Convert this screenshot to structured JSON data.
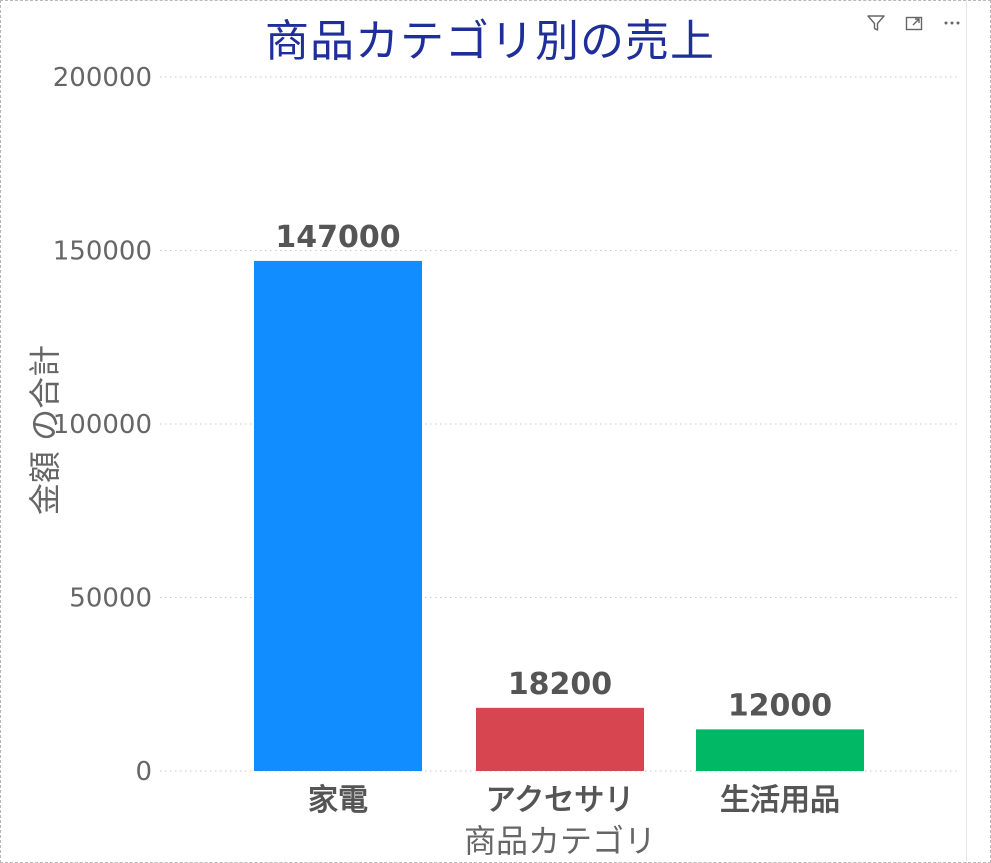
{
  "toolbar": {
    "icons": [
      "filter-icon",
      "focus-mode-icon",
      "more-options-icon"
    ]
  },
  "colors": {
    "title": "#1f2f99",
    "axis_text": "#666666",
    "grid": "#c8c8c8",
    "data_label": "#555555"
  },
  "chart_data": {
    "type": "bar",
    "title": "商品カテゴリ別の売上",
    "xlabel": "商品カテゴリ",
    "ylabel": "金額 の合計",
    "categories": [
      "家電",
      "アクセサリ",
      "生活用品"
    ],
    "values": [
      147000,
      18200,
      12000
    ],
    "colors": [
      "#118dff",
      "#d64550",
      "#01b964"
    ],
    "ylim": [
      0,
      200000
    ],
    "yticks": [
      0,
      50000,
      100000,
      150000,
      200000
    ],
    "ytick_labels": [
      "0",
      "50000",
      "100000",
      "150000",
      "200000"
    ],
    "data_labels": [
      "147000",
      "18200",
      "12000"
    ],
    "grid": true,
    "legend": "none"
  }
}
